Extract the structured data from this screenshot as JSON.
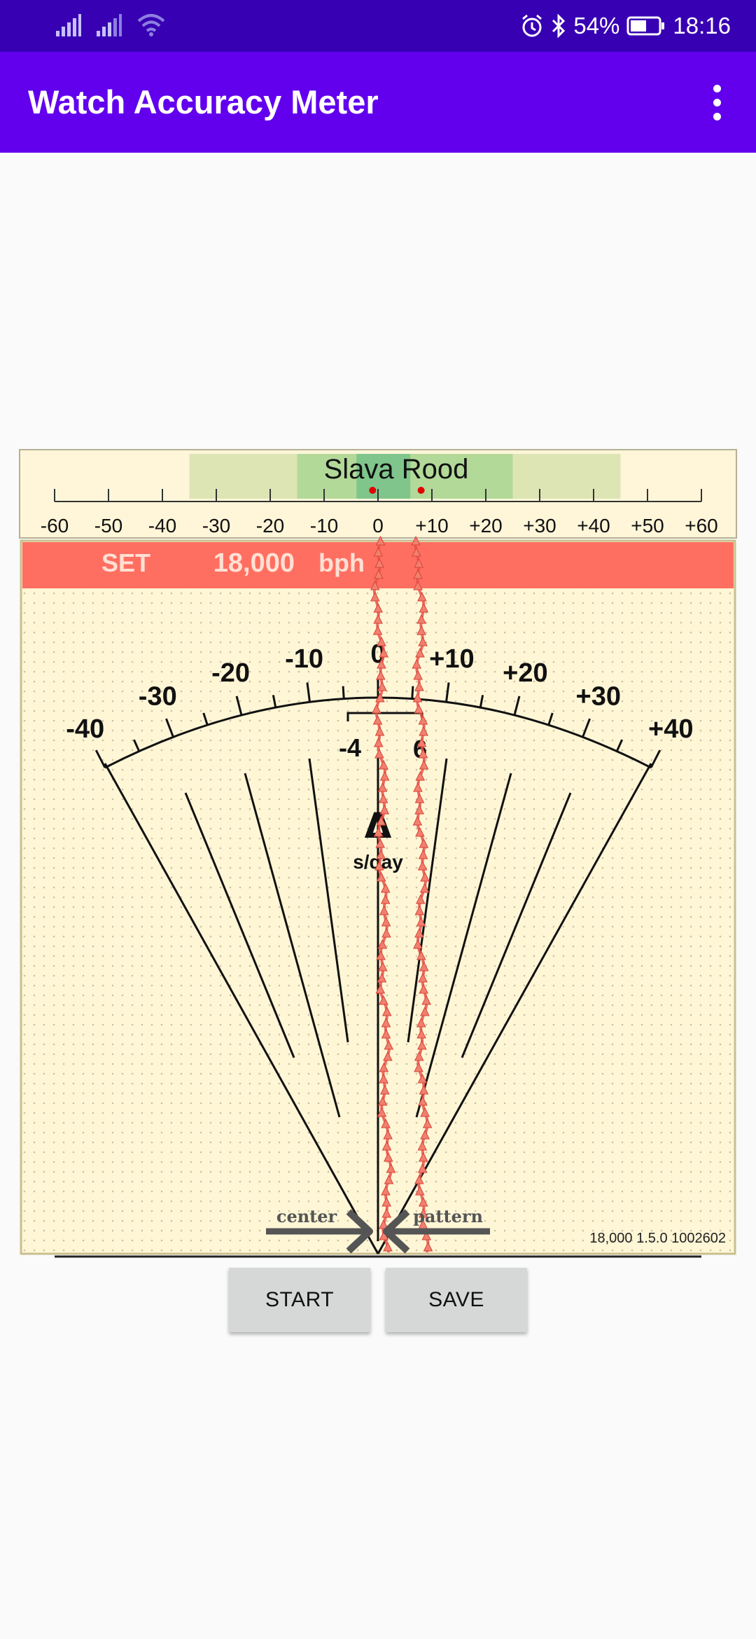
{
  "status_bar": {
    "battery": "54%",
    "time": "18:16",
    "icons": [
      "signal-icon",
      "signal-icon",
      "wifi-icon",
      "alarm-icon",
      "bluetooth-icon",
      "battery-icon"
    ]
  },
  "app_bar": {
    "title": "Watch Accuracy Meter",
    "menu_icon": "more-vert-icon"
  },
  "meter": {
    "watch_name": "Slava Rood",
    "top_scale": {
      "labels": [
        "-60",
        "-50",
        "-40",
        "-30",
        "-20",
        "-10",
        "0",
        "+10",
        "+20",
        "+30",
        "+40",
        "+50",
        "+60"
      ],
      "min": -60,
      "max": 60,
      "bands": [
        {
          "from": -35,
          "to": 45,
          "color": "#dde5b5"
        },
        {
          "from": -15,
          "to": 25,
          "color": "#b3d999"
        },
        {
          "from": -4,
          "to": 6,
          "color": "#80c68c"
        }
      ],
      "markers": [
        -1,
        8
      ]
    },
    "set_bar": {
      "label": "SET",
      "rate": "18,000",
      "unit": "bph",
      "color": "#ff6f61"
    },
    "dial": {
      "labels": [
        "-40",
        "-30",
        "-20",
        "-10",
        "0",
        "+10",
        "+20",
        "+30",
        "+40"
      ],
      "min": -40,
      "max": 40,
      "bracket_labels": [
        "-4",
        "6"
      ],
      "delta_symbol": "Δ",
      "delta_unit": "s/day"
    },
    "center_label": "center",
    "pattern_label": "pattern",
    "version_text": "18,000 1.5.0 1002602",
    "trace_positions": [
      0,
      9
    ]
  },
  "buttons": {
    "start": "START",
    "save": "SAVE"
  }
}
